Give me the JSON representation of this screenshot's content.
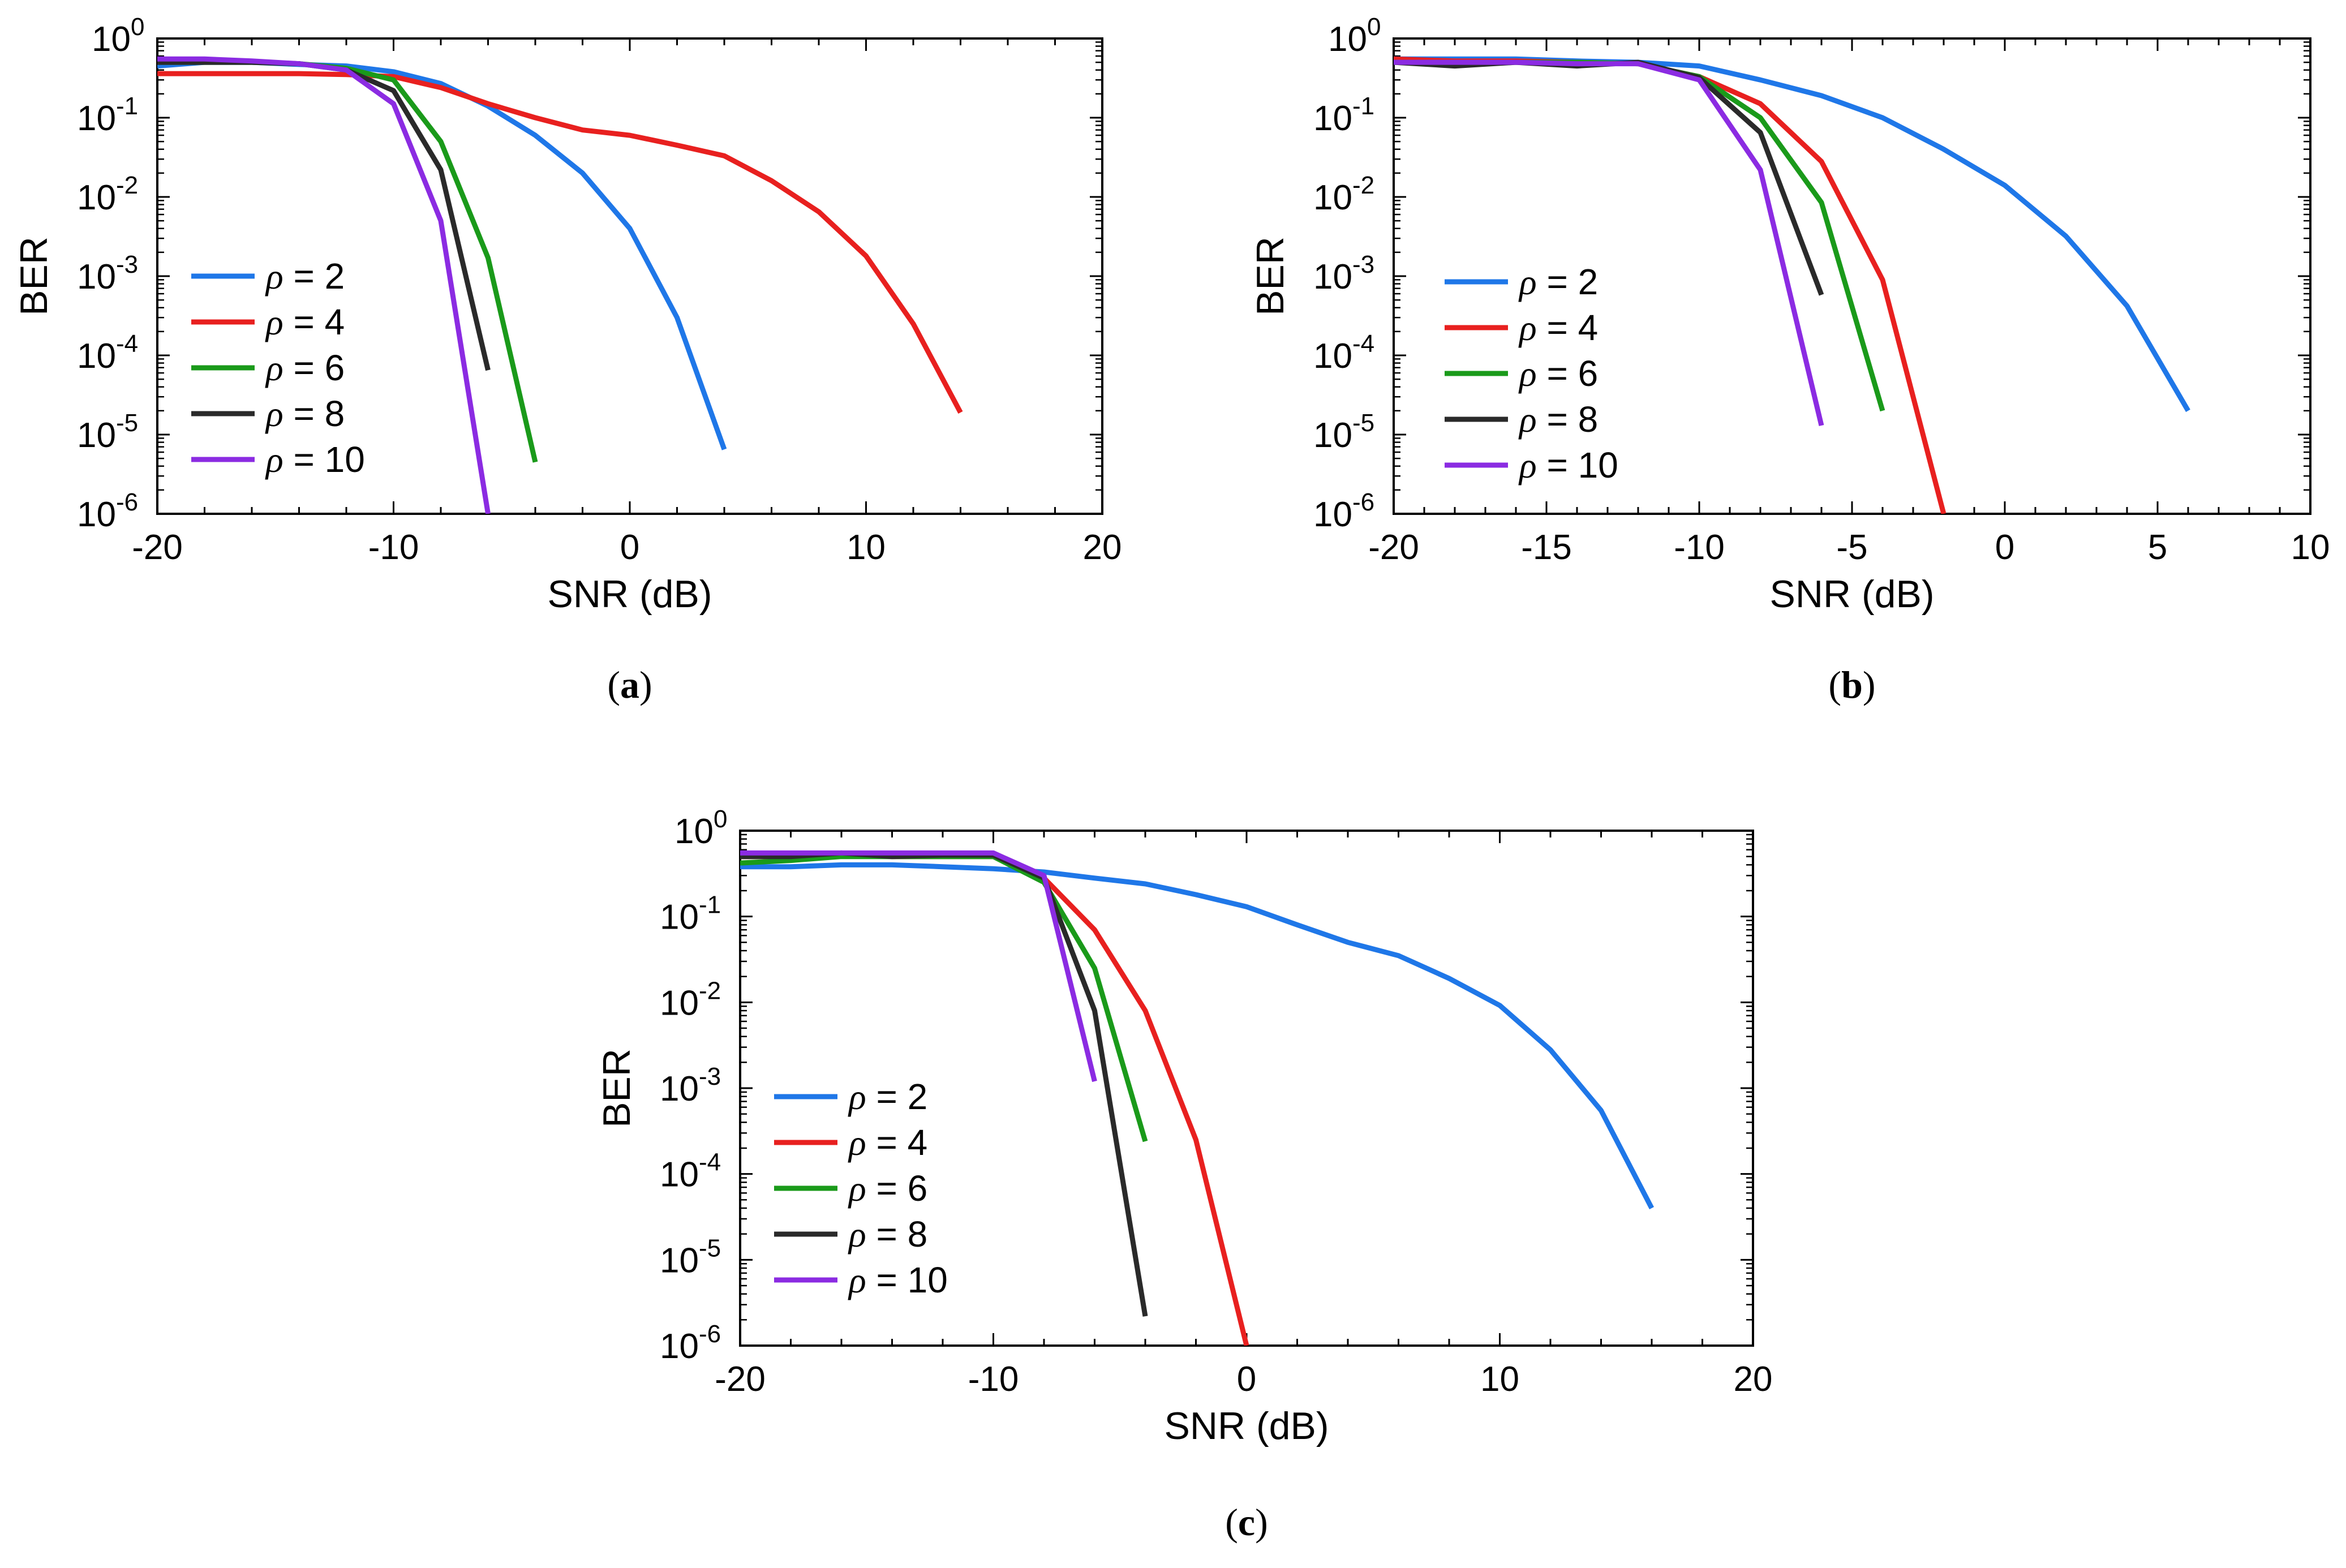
{
  "chart_data": [
    {
      "type": "line",
      "caption_letter": "a",
      "xlabel": "SNR (dB)",
      "ylabel": "BER",
      "xlim": [
        -20,
        20
      ],
      "ylim_exp": [
        -6,
        0
      ],
      "yscale": "log",
      "xticks": [
        -20,
        -10,
        0,
        10,
        20
      ],
      "xtick_labels": [
        "-20",
        "-10",
        "0",
        "10",
        "20"
      ],
      "legend_position": "left",
      "series": [
        {
          "name": "2",
          "color": "#1f77e8",
          "x": [
            -20,
            -18,
            -16,
            -14,
            -12,
            -10,
            -8,
            -6,
            -4,
            -2,
            0,
            2,
            4
          ],
          "y": [
            0.45,
            0.5,
            0.5,
            0.47,
            0.45,
            0.38,
            0.27,
            0.14,
            0.06,
            0.02,
            0.004,
            0.0003,
            6.5e-06
          ]
        },
        {
          "name": "4",
          "color": "#e8201f",
          "x": [
            -20,
            -18,
            -16,
            -14,
            -12,
            -10,
            -8,
            -6,
            -4,
            -2,
            0,
            2,
            4,
            6,
            8,
            10,
            12,
            14
          ],
          "y": [
            0.36,
            0.36,
            0.36,
            0.36,
            0.35,
            0.33,
            0.24,
            0.15,
            0.1,
            0.07,
            0.06,
            0.045,
            0.033,
            0.016,
            0.0065,
            0.0018,
            0.00025,
            1.9e-05
          ]
        },
        {
          "name": "6",
          "color": "#1a9a1a",
          "x": [
            -20,
            -18,
            -16,
            -14,
            -12,
            -10,
            -8,
            -6,
            -4
          ],
          "y": [
            0.5,
            0.5,
            0.5,
            0.48,
            0.42,
            0.3,
            0.05,
            0.0017,
            4.5e-06
          ]
        },
        {
          "name": "8",
          "color": "#2a2a2a",
          "x": [
            -20,
            -18,
            -16,
            -14,
            -12,
            -10,
            -8,
            -6
          ],
          "y": [
            0.5,
            0.5,
            0.5,
            0.48,
            0.4,
            0.22,
            0.022,
            6.5e-05
          ]
        },
        {
          "name": "10",
          "color": "#8b2be2",
          "x": [
            -20,
            -18,
            -16,
            -14,
            -12,
            -10,
            -8,
            -6
          ],
          "y": [
            0.55,
            0.55,
            0.52,
            0.48,
            0.4,
            0.15,
            0.005,
            1e-06
          ]
        }
      ]
    },
    {
      "type": "line",
      "caption_letter": "b",
      "xlabel": "SNR (dB)",
      "ylabel": "BER",
      "xlim": [
        -20,
        10
      ],
      "ylim_exp": [
        -6,
        0
      ],
      "yscale": "log",
      "xticks": [
        -20,
        -15,
        -10,
        -5,
        0,
        5,
        10
      ],
      "xtick_labels": [
        "-20",
        "-15",
        "-10",
        "-5",
        "0",
        "5",
        "10"
      ],
      "legend_position": "left",
      "series": [
        {
          "name": "2",
          "color": "#1f77e8",
          "x": [
            -20,
            -18,
            -16,
            -14,
            -12,
            -10,
            -8,
            -6,
            -4,
            -2,
            0,
            2,
            4,
            6
          ],
          "y": [
            0.55,
            0.55,
            0.55,
            0.52,
            0.5,
            0.45,
            0.3,
            0.19,
            0.1,
            0.04,
            0.014,
            0.0032,
            0.00042,
            2e-05
          ]
        },
        {
          "name": "4",
          "color": "#e8201f",
          "x": [
            -20,
            -18,
            -16,
            -14,
            -12,
            -10,
            -8,
            -6,
            -4,
            -2
          ],
          "y": [
            0.55,
            0.52,
            0.52,
            0.5,
            0.48,
            0.33,
            0.15,
            0.028,
            0.0009,
            1e-06
          ]
        },
        {
          "name": "6",
          "color": "#1a9a1a",
          "x": [
            -20,
            -18,
            -16,
            -14,
            -12,
            -10,
            -8,
            -6,
            -4
          ],
          "y": [
            0.5,
            0.5,
            0.5,
            0.5,
            0.48,
            0.33,
            0.1,
            0.0085,
            2e-05
          ]
        },
        {
          "name": "8",
          "color": "#2a2a2a",
          "x": [
            -20,
            -18,
            -16,
            -14,
            -12,
            -10,
            -8,
            -6
          ],
          "y": [
            0.5,
            0.45,
            0.5,
            0.45,
            0.5,
            0.32,
            0.065,
            0.00058
          ]
        },
        {
          "name": "10",
          "color": "#8b2be2",
          "x": [
            -20,
            -18,
            -16,
            -14,
            -12,
            -10,
            -8,
            -6
          ],
          "y": [
            0.5,
            0.5,
            0.5,
            0.48,
            0.48,
            0.3,
            0.022,
            1.3e-05
          ]
        }
      ]
    },
    {
      "type": "line",
      "caption_letter": "c",
      "xlabel": "SNR (dB)",
      "ylabel": "BER",
      "xlim": [
        -20,
        20
      ],
      "ylim_exp": [
        -6,
        0
      ],
      "yscale": "log",
      "xticks": [
        -20,
        -10,
        0,
        10,
        20
      ],
      "xtick_labels": [
        "-20",
        "-10",
        "0",
        "10",
        "20"
      ],
      "legend_position": "left",
      "series": [
        {
          "name": "2",
          "color": "#1f77e8",
          "x": [
            -20,
            -18,
            -16,
            -14,
            -12,
            -10,
            -8,
            -6,
            -4,
            -2,
            0,
            2,
            4,
            6,
            8,
            10,
            12,
            14,
            16
          ],
          "y": [
            0.38,
            0.38,
            0.4,
            0.4,
            0.38,
            0.36,
            0.33,
            0.28,
            0.24,
            0.18,
            0.13,
            0.08,
            0.05,
            0.035,
            0.019,
            0.0092,
            0.0028,
            0.00055,
            4e-05
          ]
        },
        {
          "name": "4",
          "color": "#e8201f",
          "x": [
            -20,
            -18,
            -16,
            -14,
            -12,
            -10,
            -8,
            -6,
            -4,
            -2,
            0
          ],
          "y": [
            0.5,
            0.5,
            0.52,
            0.5,
            0.5,
            0.5,
            0.28,
            0.07,
            0.008,
            0.00025,
            1e-06
          ]
        },
        {
          "name": "6",
          "color": "#1a9a1a",
          "x": [
            -20,
            -18,
            -16,
            -14,
            -12,
            -10,
            -8,
            -6,
            -4
          ],
          "y": [
            0.42,
            0.45,
            0.5,
            0.5,
            0.5,
            0.5,
            0.25,
            0.025,
            0.00024
          ]
        },
        {
          "name": "8",
          "color": "#2a2a2a",
          "x": [
            -20,
            -18,
            -16,
            -14,
            -12,
            -10,
            -8,
            -6,
            -4
          ],
          "y": [
            0.5,
            0.5,
            0.55,
            0.5,
            0.52,
            0.52,
            0.28,
            0.008,
            2.2e-06
          ]
        },
        {
          "name": "10",
          "color": "#8b2be2",
          "x": [
            -20,
            -18,
            -16,
            -14,
            -12,
            -10,
            -8,
            -6
          ],
          "y": [
            0.55,
            0.55,
            0.55,
            0.55,
            0.55,
            0.55,
            0.3,
            0.0012
          ]
        }
      ]
    }
  ],
  "legend_prefix": "ρ = "
}
